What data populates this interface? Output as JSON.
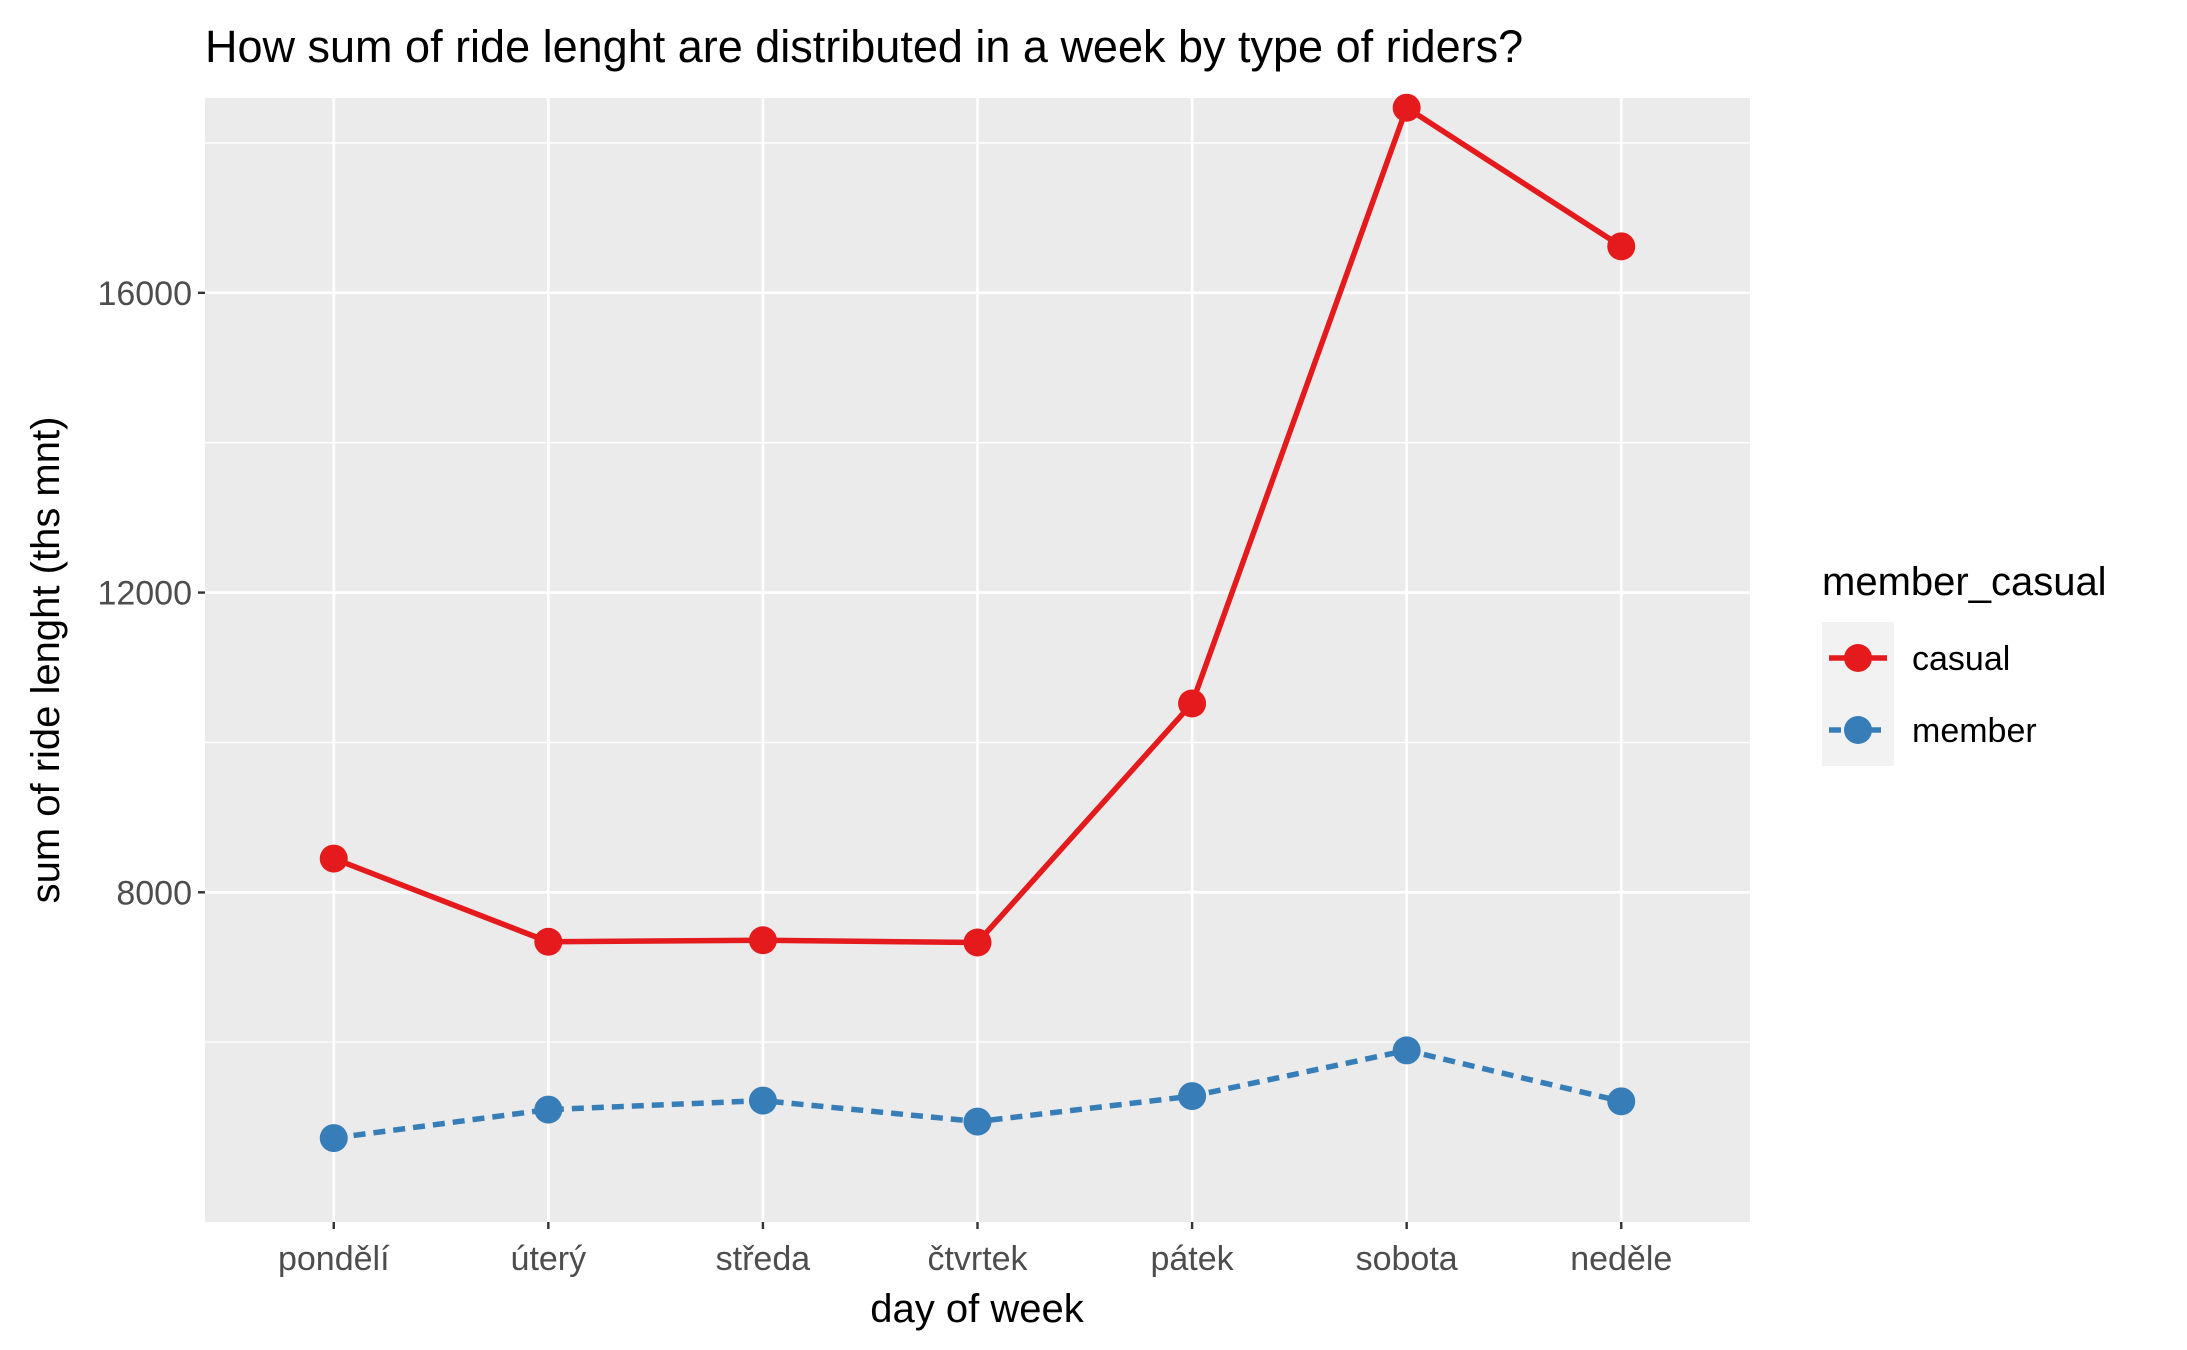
{
  "chart_data": {
    "type": "line",
    "title": "How sum of ride lenght are distributed in a week by type of riders?",
    "xlabel": "day of week",
    "ylabel": "sum of ride lenght (ths mnt)",
    "categories": [
      "pondělí",
      "úterý",
      "středa",
      "čtvrtek",
      "pátek",
      "sobota",
      "neděle"
    ],
    "yticks": [
      8000,
      12000,
      16000
    ],
    "ylim": [
      3600,
      18600
    ],
    "grid": true,
    "legend": {
      "title": "member_casual",
      "placement": "right"
    },
    "series": [
      {
        "name": "casual",
        "color": "#E41A1C",
        "line_style": "solid",
        "values": [
          8450,
          7340,
          7360,
          7330,
          10520,
          18470,
          16620
        ]
      },
      {
        "name": "member",
        "color": "#377EB8",
        "line_style": "dashed",
        "values": [
          4720,
          5100,
          5220,
          4940,
          5280,
          5890,
          5210
        ]
      }
    ]
  }
}
